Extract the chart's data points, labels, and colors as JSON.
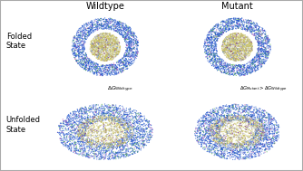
{
  "title_wildtype": "Wildtype",
  "title_mutant": "Mutant",
  "label_folded": "Folded\nState",
  "label_unfolded": "Unfolded\nState",
  "bg_color": "#ffffff",
  "border_color": "#aaaaaa",
  "seed": 42
}
